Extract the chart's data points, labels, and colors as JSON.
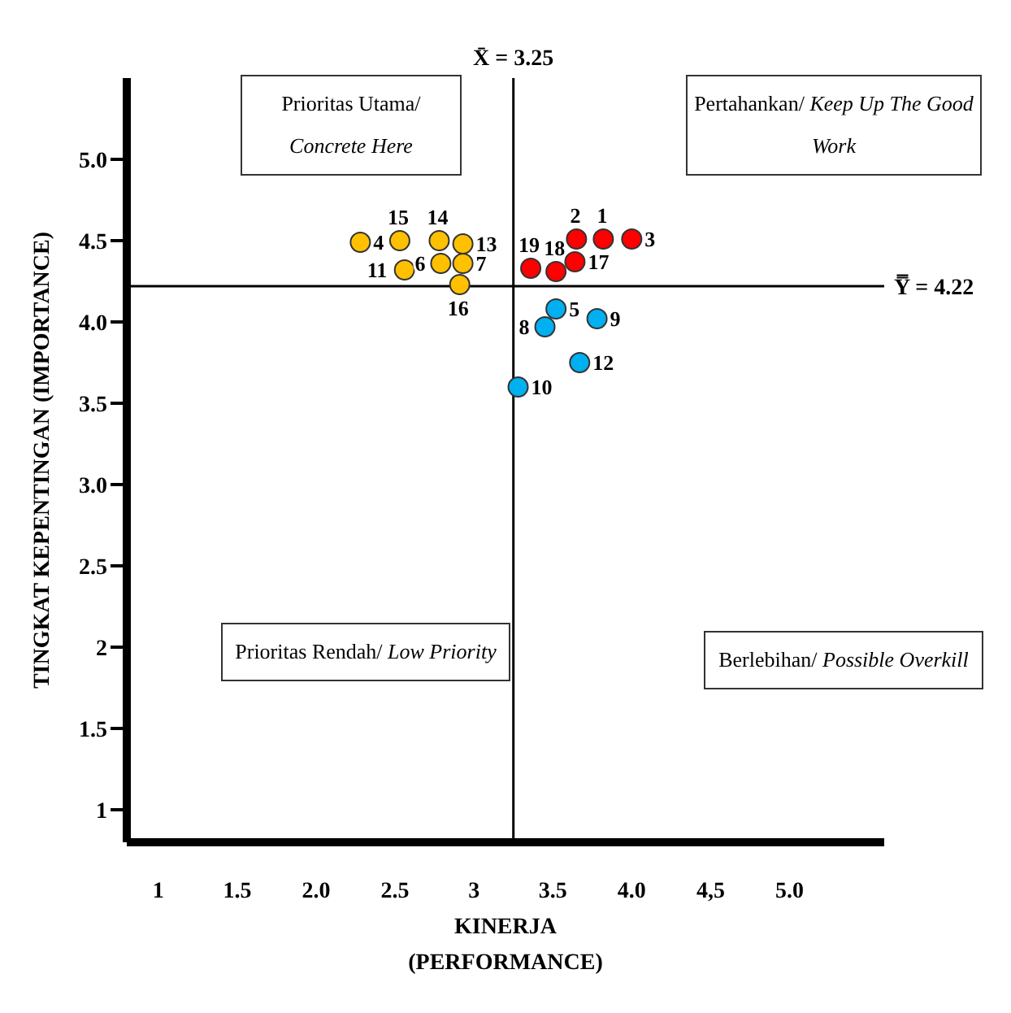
{
  "chart_data": {
    "type": "scatter",
    "xlabel": "KINERJA\n(PERFORMANCE)",
    "ylabel": "TINGKAT KEPENTINGAN (IMPORTANCE)",
    "xlim": [
      0.8,
      5.6
    ],
    "ylim": [
      0.8,
      5.5
    ],
    "xticks": [
      1,
      1.5,
      {
        "value": 2,
        "label": "2.0"
      },
      2.5,
      3,
      3.5,
      {
        "value": 4,
        "label": "4.0"
      },
      {
        "value": 4.5,
        "label": "4,5"
      },
      {
        "value": 5,
        "label": "5.0"
      }
    ],
    "yticks": [
      1,
      1.5,
      2,
      2.5,
      {
        "value": 3,
        "label": "3.0"
      },
      3.5,
      {
        "value": 4,
        "label": "4.0"
      },
      4.5,
      {
        "value": 5,
        "label": "5.0"
      }
    ],
    "grid": false,
    "legend": false,
    "marker": "circle",
    "series": [
      {
        "color": "#ffc000",
        "x": [
          2.28,
          2.53,
          2.78,
          2.93,
          2.56,
          2.79,
          2.93,
          2.91
        ],
        "values": [
          4.49,
          4.5,
          4.5,
          4.48,
          4.32,
          4.36,
          4.36,
          4.23
        ]
      },
      {
        "color": "#ff0000",
        "x": [
          3.36,
          3.52,
          3.64,
          3.65,
          3.82,
          4.0
        ],
        "values": [
          4.33,
          4.31,
          4.37,
          4.51,
          4.51,
          4.51
        ]
      },
      {
        "color": "#00b0f0",
        "x": [
          3.52,
          3.45,
          3.78,
          3.67,
          3.28
        ],
        "values": [
          4.08,
          3.97,
          4.02,
          3.75,
          3.6
        ]
      }
    ],
    "ref_lines": [
      {
        "axis": "x",
        "value": 3.25,
        "label": "X̄ = 3.25",
        "color": "#000000"
      },
      {
        "axis": "y",
        "value": 4.22,
        "label": "Y̿ = 4.22",
        "color": "#000000"
      }
    ],
    "annotations": [
      "Prioritas Utama/ Concrete Here",
      "Pertahankan/ Keep Up The Good Work",
      "Prioritas Rendah/ Low Priority",
      "Berlebihan/ Possible Overkill",
      {
        "text": "4",
        "x": 2.28,
        "y": 4.49
      },
      {
        "text": "15",
        "x": 2.53,
        "y": 4.5
      },
      {
        "text": "14",
        "x": 2.78,
        "y": 4.5
      },
      {
        "text": "13",
        "x": 2.93,
        "y": 4.48
      },
      {
        "text": "11",
        "x": 2.56,
        "y": 4.32
      },
      {
        "text": "6",
        "x": 2.79,
        "y": 4.36
      },
      {
        "text": "7",
        "x": 2.93,
        "y": 4.36
      },
      {
        "text": "16",
        "x": 2.91,
        "y": 4.23
      },
      {
        "text": "19",
        "x": 3.36,
        "y": 4.33
      },
      {
        "text": "18",
        "x": 3.52,
        "y": 4.31
      },
      {
        "text": "17",
        "x": 3.64,
        "y": 4.37
      },
      {
        "text": "2",
        "x": 3.65,
        "y": 4.51
      },
      {
        "text": "1",
        "x": 3.82,
        "y": 4.51
      },
      {
        "text": "3",
        "x": 4.0,
        "y": 4.51
      },
      {
        "text": "5",
        "x": 3.52,
        "y": 4.08
      },
      {
        "text": "8",
        "x": 3.45,
        "y": 3.97
      },
      {
        "text": "9",
        "x": 3.78,
        "y": 4.02
      },
      {
        "text": "12",
        "x": 3.67,
        "y": 3.75
      },
      {
        "text": "10",
        "x": 3.28,
        "y": 3.6
      }
    ]
  }
}
